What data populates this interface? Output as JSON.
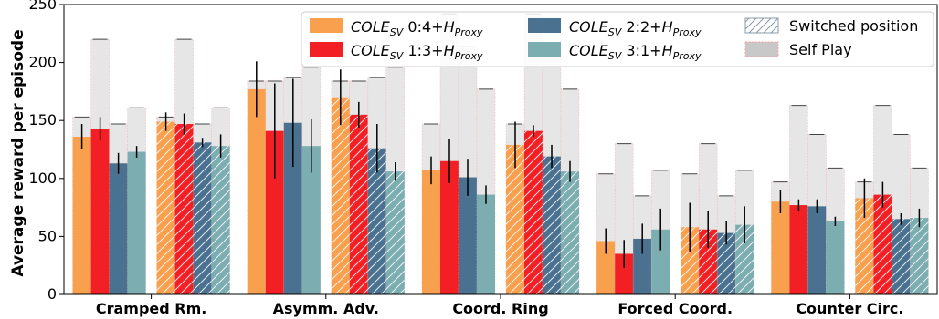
{
  "chart_data": {
    "type": "bar",
    "ylabel": "Average reward per episode",
    "ylim": [
      0,
      250
    ],
    "yticks": [
      0,
      50,
      100,
      150,
      200,
      250
    ],
    "categories": [
      "Cramped Rm.",
      "Asymm. Adv.",
      "Coord. Ring",
      "Forced Coord.",
      "Counter Circ."
    ],
    "groups": [
      "normal",
      "switched"
    ],
    "series": [
      {
        "name": "COLE_SV 0:4+H_Proxy",
        "legend_parts": {
          "base": "COLE",
          "sub": "SV",
          "mid": " 0:4+",
          "h": "H",
          "hsub": "Proxy"
        },
        "color": "#f9a04e",
        "values": {
          "normal": [
            136,
            177,
            107,
            46,
            80
          ],
          "switched": [
            149,
            170,
            129,
            58,
            83
          ]
        },
        "errors": {
          "normal": [
            11,
            24,
            12,
            11,
            10
          ],
          "switched": [
            8,
            24,
            20,
            21,
            17
          ]
        },
        "self_play": [
          153,
          184,
          147,
          104,
          97
        ]
      },
      {
        "name": "COLE_SV 1:3+H_Proxy",
        "legend_parts": {
          "base": "COLE",
          "sub": "SV",
          "mid": " 1:3+",
          "h": "H",
          "hsub": "Proxy"
        },
        "color": "#f21f25",
        "values": {
          "normal": [
            143,
            141,
            115,
            35,
            77
          ],
          "switched": [
            147,
            155,
            141,
            56,
            86
          ]
        },
        "errors": {
          "normal": [
            10,
            41,
            19,
            12,
            5
          ],
          "switched": [
            9,
            11,
            5,
            16,
            11
          ]
        },
        "self_play": [
          220,
          184,
          242,
          130,
          163
        ]
      },
      {
        "name": "COLE_SV 2:2+H_Proxy",
        "legend_parts": {
          "base": "COLE",
          "sub": "SV",
          "mid": " 2:2+",
          "h": "H",
          "hsub": "Proxy"
        },
        "color": "#4a7290",
        "values": {
          "normal": [
            113,
            148,
            101,
            48,
            76
          ],
          "switched": [
            131,
            126,
            119,
            53,
            65
          ]
        },
        "errors": {
          "normal": [
            9,
            38,
            16,
            13,
            6
          ],
          "switched": [
            4,
            21,
            10,
            10,
            5
          ]
        },
        "self_play": [
          147,
          187,
          214,
          85,
          138
        ]
      },
      {
        "name": "COLE_SV 3:1+H_Proxy",
        "legend_parts": {
          "base": "COLE",
          "sub": "SV",
          "mid": " 3:1+",
          "h": "H",
          "hsub": "Proxy"
        },
        "color": "#7cadb1",
        "values": {
          "normal": [
            123,
            128,
            86,
            56,
            63
          ],
          "switched": [
            128,
            106,
            106,
            60,
            66
          ]
        },
        "errors": {
          "normal": [
            5,
            23,
            8,
            18,
            4
          ],
          "switched": [
            10,
            8,
            9,
            16,
            8
          ]
        },
        "self_play": [
          161,
          196,
          177,
          107,
          109
        ]
      }
    ],
    "legend": {
      "placement": "top-right",
      "switched_label": "Switched position",
      "selfplay_label": "Self Play"
    },
    "grid": false
  }
}
